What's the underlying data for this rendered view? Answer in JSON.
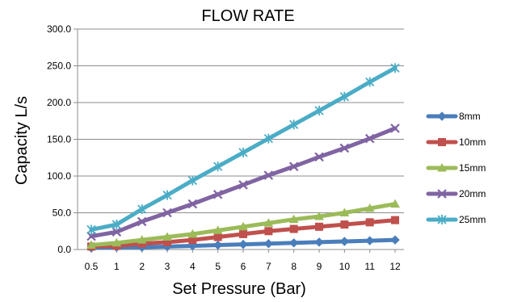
{
  "chart_data": {
    "type": "line",
    "title": "FLOW RATE",
    "xlabel": "Set Pressure (Bar)",
    "ylabel": "Capacity L/s",
    "categories": [
      "0.5",
      "1",
      "2",
      "3",
      "4",
      "5",
      "6",
      "7",
      "8",
      "9",
      "10",
      "11",
      "12"
    ],
    "y_tick_labels": [
      "0.0",
      "50.0",
      "100.0",
      "150.0",
      "200.0",
      "250.0",
      "300.0"
    ],
    "ylim": [
      0,
      300
    ],
    "grid": "horizontal",
    "legend_position": "right",
    "series": [
      {
        "name": "8mm",
        "color": "#4A7EBB",
        "marker": "diamond",
        "values": [
          2,
          3,
          3,
          4,
          5,
          6,
          7,
          8,
          9,
          10,
          11,
          12,
          13
        ]
      },
      {
        "name": "10mm",
        "color": "#C0504D",
        "marker": "square",
        "values": [
          4,
          5,
          8,
          10,
          13,
          17,
          21,
          25,
          28,
          31,
          34,
          37,
          40
        ]
      },
      {
        "name": "15mm",
        "color": "#9BBB59",
        "marker": "triangle",
        "values": [
          6,
          9,
          13,
          17,
          21,
          26,
          31,
          36,
          41,
          45,
          50,
          56,
          62
        ]
      },
      {
        "name": "20mm",
        "color": "#8064A2",
        "marker": "x",
        "values": [
          18,
          24,
          38,
          50,
          62,
          75,
          88,
          101,
          113,
          126,
          138,
          151,
          165
        ]
      },
      {
        "name": "25mm",
        "color": "#4BACC6",
        "marker": "star",
        "values": [
          27,
          34,
          55,
          74,
          94,
          113,
          132,
          151,
          170,
          189,
          208,
          228,
          247
        ]
      }
    ]
  }
}
